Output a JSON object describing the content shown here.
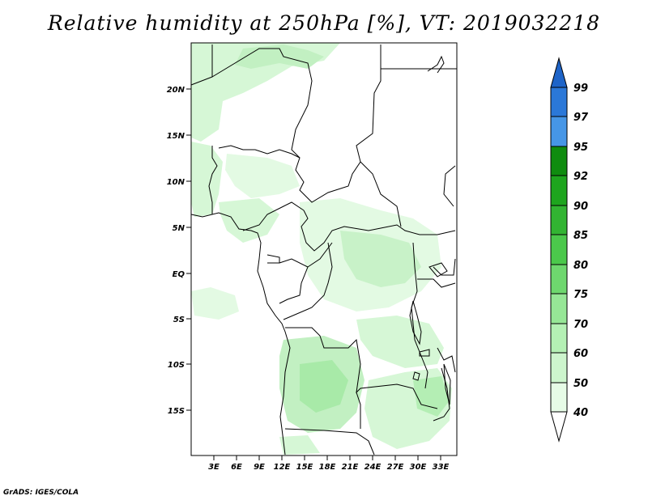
{
  "title": "Relative humidity at 250hPa [%], VT: 2019032218",
  "credit": "GrADS: IGES/COLA",
  "map": {
    "lat_ticks": [
      "20N",
      "15N",
      "10N",
      "5N",
      "EQ",
      "5S",
      "10S",
      "15S"
    ],
    "lon_ticks": [
      "3E",
      "6E",
      "9E",
      "12E",
      "15E",
      "18E",
      "21E",
      "24E",
      "27E",
      "30E",
      "33E"
    ]
  },
  "colorbar": {
    "labels": [
      "99",
      "97",
      "95",
      "92",
      "90",
      "85",
      "80",
      "75",
      "70",
      "60",
      "50",
      "40"
    ],
    "colors": {
      "above_99": "#1e64c8",
      "97_99": "#2b78d8",
      "95_97": "#4696e6",
      "92_95": "#0f8c0f",
      "90_92": "#1ea51e",
      "85_90": "#32b432",
      "80_85": "#4bc84b",
      "75_80": "#6ed76e",
      "70_75": "#96e696",
      "60_70": "#b4f0b4",
      "50_60": "#cdf5cd",
      "40_50": "#e6fbe6",
      "below_40": "#ffffff"
    }
  }
}
